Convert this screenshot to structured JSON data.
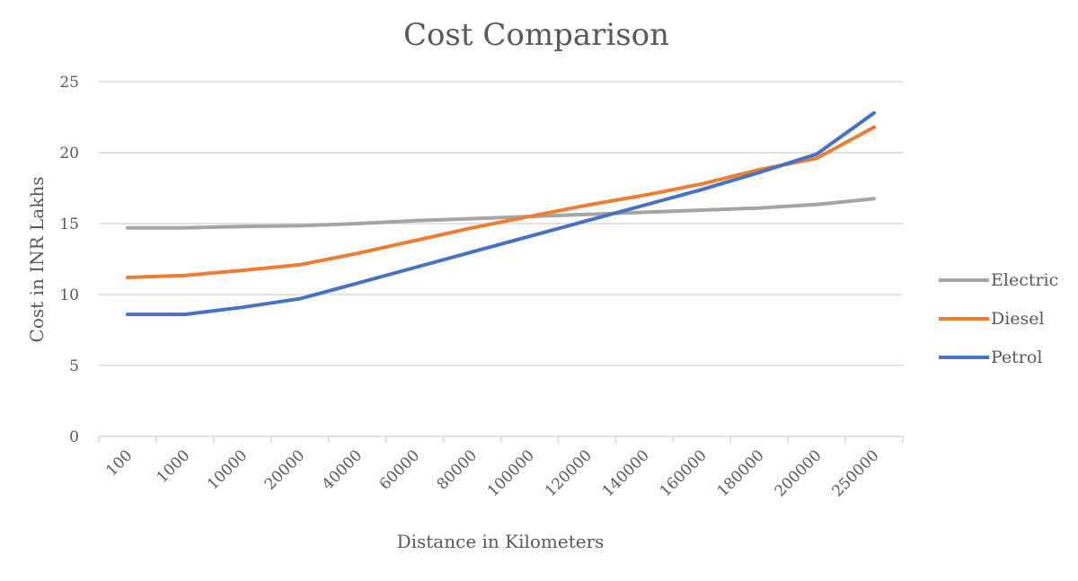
{
  "chart_data": {
    "type": "line",
    "title": "Cost Comparison",
    "xlabel": "Distance in Kilometers",
    "ylabel": "Cost in INR Lakhs",
    "categories": [
      "100",
      "1000",
      "10000",
      "20000",
      "40000",
      "60000",
      "80000",
      "100000",
      "120000",
      "140000",
      "160000",
      "180000",
      "200000",
      "250000"
    ],
    "ylim": [
      0,
      25
    ],
    "yticks": [
      0,
      5,
      10,
      15,
      20,
      25
    ],
    "grid": true,
    "legend": "right",
    "series": [
      {
        "name": "Electric",
        "color": "#a5a5a5",
        "values": [
          14.7,
          14.7,
          14.8,
          14.85,
          15.0,
          15.2,
          15.35,
          15.5,
          15.65,
          15.8,
          15.95,
          16.1,
          16.35,
          16.75
        ]
      },
      {
        "name": "Diesel",
        "color": "#ed7d31",
        "values": [
          11.2,
          11.35,
          11.7,
          12.1,
          12.9,
          13.8,
          14.7,
          15.5,
          16.3,
          17.0,
          17.8,
          18.8,
          19.6,
          21.8
        ]
      },
      {
        "name": "Petrol",
        "color": "#4472c4",
        "values": [
          8.6,
          8.6,
          9.1,
          9.7,
          10.8,
          11.9,
          13.0,
          14.1,
          15.2,
          16.3,
          17.4,
          18.6,
          19.9,
          22.8
        ]
      }
    ]
  }
}
